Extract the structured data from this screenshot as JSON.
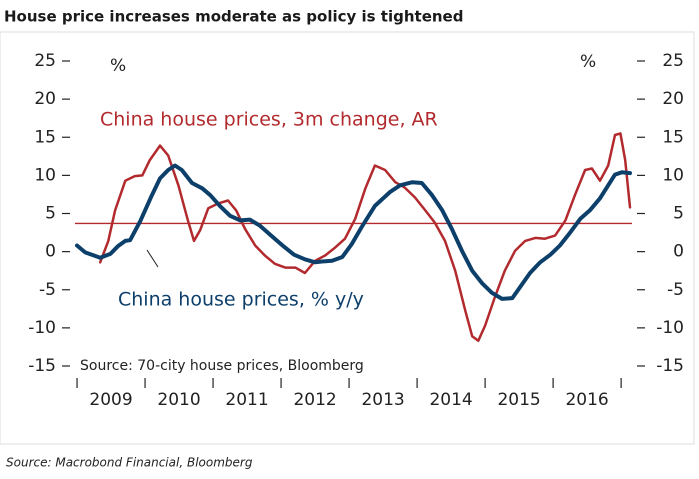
{
  "chart_data": {
    "type": "line",
    "title": "House price increases moderate as policy is tightened",
    "footnote": "Source: Macrobond Financial, Bloomberg",
    "inner_source": "Source: 70-city house prices, Bloomberg",
    "y_unit_left": "%",
    "y_unit_right": "%",
    "xlim": [
      2008.97,
      2017.16
    ],
    "xticks": [
      2009,
      2010,
      2011,
      2012,
      2013,
      2014,
      2015,
      2016
    ],
    "ylim": [
      -15,
      25
    ],
    "yticks": [
      -15,
      -10,
      -5,
      0,
      5,
      10,
      15,
      20,
      25
    ],
    "y2lim": [
      -15,
      25
    ],
    "y2ticks": [
      -15,
      -10,
      -5,
      0,
      5,
      10,
      15,
      20,
      25
    ],
    "reference_line": {
      "value": 3.7,
      "color": "#b22a2e"
    },
    "series": [
      {
        "name": "China house prices, 3m change, AR",
        "color": "#b22a2e",
        "x": [
          2009.34,
          2009.46,
          2009.56,
          2009.71,
          2009.85,
          2009.96,
          2010.07,
          2010.22,
          2010.34,
          2010.49,
          2010.63,
          2010.72,
          2010.81,
          2010.93,
          2011.07,
          2011.22,
          2011.34,
          2011.47,
          2011.62,
          2011.76,
          2011.91,
          2012.06,
          2012.21,
          2012.35,
          2012.5,
          2012.65,
          2012.79,
          2012.94,
          2013.09,
          2013.24,
          2013.38,
          2013.53,
          2013.68,
          2013.82,
          2013.97,
          2014.12,
          2014.26,
          2014.41,
          2014.56,
          2014.71,
          2014.81,
          2014.9,
          2015.0,
          2015.15,
          2015.29,
          2015.44,
          2015.59,
          2015.74,
          2015.88,
          2016.03,
          2016.18,
          2016.32,
          2016.47,
          2016.57,
          2016.69,
          2016.81,
          2016.91,
          2016.99,
          2017.06,
          2017.13
        ],
        "values": [
          -1.4,
          1.4,
          5.4,
          9.3,
          9.9,
          10,
          12,
          13.9,
          12.6,
          8.7,
          4.1,
          1.4,
          2.8,
          5.7,
          6.3,
          6.7,
          5.4,
          3,
          0.8,
          -0.5,
          -1.6,
          -2.1,
          -2.1,
          -2.8,
          -1.2,
          -0.5,
          0.5,
          1.7,
          4.3,
          8.3,
          11.3,
          10.7,
          9.1,
          8.4,
          7.1,
          5.4,
          3.8,
          1.4,
          -2.5,
          -7.8,
          -11.1,
          -11.7,
          -9.7,
          -5.8,
          -2.5,
          0.1,
          1.4,
          1.8,
          1.7,
          2.1,
          4.1,
          7.4,
          10.7,
          10.9,
          9.3,
          11.3,
          15.3,
          15.5,
          12,
          5.8
        ]
      },
      {
        "name": "China house prices, % y/y",
        "color": "#0d3f6b",
        "x": [
          2009.0,
          2009.12,
          2009.34,
          2009.49,
          2009.6,
          2009.71,
          2009.78,
          2009.93,
          2010.1,
          2010.22,
          2010.34,
          2010.44,
          2010.54,
          2010.69,
          2010.84,
          2010.96,
          2011.1,
          2011.25,
          2011.4,
          2011.54,
          2011.69,
          2011.84,
          2012.01,
          2012.19,
          2012.35,
          2012.5,
          2012.6,
          2012.75,
          2012.9,
          2013.04,
          2013.19,
          2013.38,
          2013.6,
          2013.75,
          2013.93,
          2014.07,
          2014.22,
          2014.37,
          2014.51,
          2014.66,
          2014.81,
          2014.96,
          2015.1,
          2015.25,
          2015.4,
          2015.51,
          2015.66,
          2015.81,
          2015.96,
          2016.1,
          2016.25,
          2016.4,
          2016.54,
          2016.69,
          2016.81,
          2016.91,
          2017.01,
          2017.13
        ],
        "values": [
          0.8,
          -0.1,
          -0.8,
          -0.3,
          0.7,
          1.4,
          1.5,
          4,
          7.4,
          9.6,
          10.7,
          11.3,
          10.7,
          9,
          8.3,
          7.4,
          6,
          4.7,
          4.1,
          4.2,
          3.4,
          2.2,
          0.9,
          -0.4,
          -1,
          -1.4,
          -1.3,
          -1.2,
          -0.7,
          1,
          3.3,
          6,
          7.8,
          8.7,
          9.1,
          9,
          7.4,
          5.4,
          3,
          0.1,
          -2.5,
          -4.2,
          -5.4,
          -6.2,
          -6.1,
          -4.7,
          -2.8,
          -1.4,
          -0.4,
          0.8,
          2.5,
          4.3,
          5.4,
          7,
          8.7,
          10.1,
          10.4,
          10.3
        ]
      }
    ]
  }
}
